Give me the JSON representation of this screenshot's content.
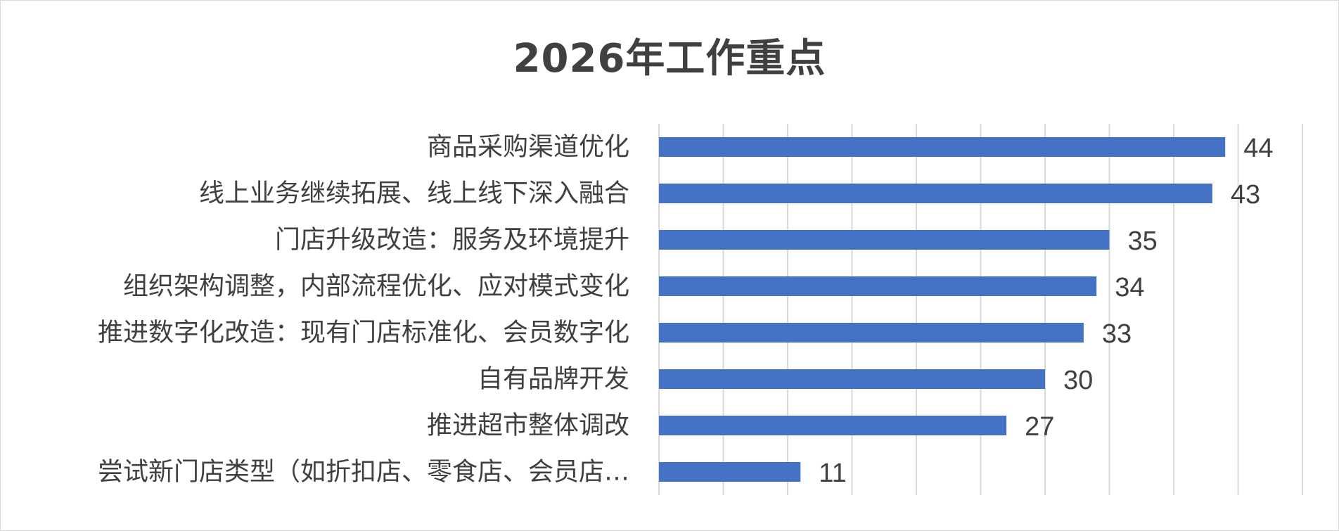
{
  "chart_data": {
    "type": "bar",
    "orientation": "horizontal",
    "title": "2026年工作重点",
    "xlabel": "",
    "ylabel": "",
    "xlim": [
      0,
      50
    ],
    "grid": true,
    "legend": "none",
    "bar_color": "#4472C4",
    "gridline_color": "#d9d9d9",
    "categories": [
      "商品采购渠道优化",
      "线上业务继续拓展、线上线下深入融合",
      "门店升级改造：服务及环境提升",
      "组织架构调整，内部流程优化、应对模式变化",
      "推进数字化改造：现有门店标准化、会员数字化",
      "自有品牌开发",
      "推进超市整体调改",
      "尝试新门店类型（如折扣店、零食店、会员店…"
    ],
    "values": [
      44,
      43,
      35,
      34,
      33,
      30,
      27,
      11
    ]
  }
}
